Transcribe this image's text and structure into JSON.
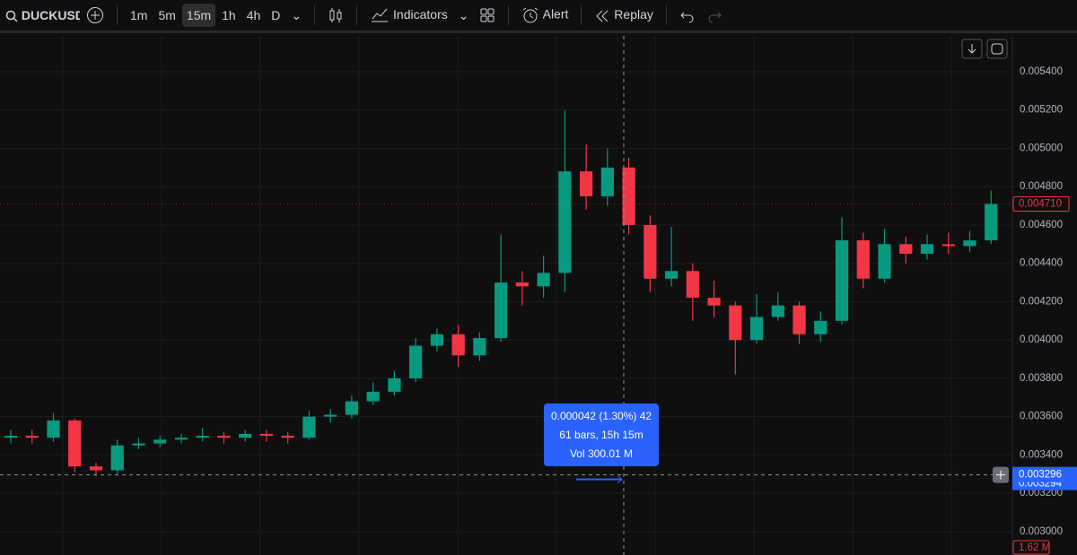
{
  "toolbar": {
    "symbol": "DUCKUSD",
    "timeframes": [
      "1m",
      "5m",
      "15m",
      "1h",
      "4h",
      "D"
    ],
    "active_timeframe": "15m",
    "indicators": "Indicators",
    "alert": "Alert",
    "replay": "Replay"
  },
  "chart_data": {
    "type": "candlestick",
    "up_color": "#089981",
    "down_color": "#f23645",
    "grid": true,
    "ylim": [
      0.002878,
      0.005587
    ],
    "yticks": [
      {
        "value": 0.0054,
        "label": "0.005400"
      },
      {
        "value": 0.0052,
        "label": "0.005200"
      },
      {
        "value": 0.005,
        "label": "0.005000"
      },
      {
        "value": 0.0048,
        "label": "0.004800"
      },
      {
        "value": 0.0046,
        "label": "0.004600"
      },
      {
        "value": 0.0044,
        "label": "0.004400"
      },
      {
        "value": 0.0042,
        "label": "0.004200"
      },
      {
        "value": 0.004,
        "label": "0.004000"
      },
      {
        "value": 0.0038,
        "label": "0.003800"
      },
      {
        "value": 0.0036,
        "label": "0.003600"
      },
      {
        "value": 0.0034,
        "label": "0.003400"
      },
      {
        "value": 0.0032,
        "label": "0.003200"
      },
      {
        "value": 0.003,
        "label": "0.003000"
      }
    ],
    "open": [
      0.00349,
      0.0035,
      0.00349,
      0.00358,
      0.00334,
      0.00332,
      0.00345,
      0.00346,
      0.00348,
      0.00349,
      0.0035,
      0.00349,
      0.00351,
      0.0035,
      0.00349,
      0.0036,
      0.00361,
      0.00368,
      0.00373,
      0.0038,
      0.00397,
      0.00403,
      0.00392,
      0.00401,
      0.0043,
      0.00428,
      0.00435,
      0.00488,
      0.00475,
      0.0049,
      0.0046,
      0.00432,
      0.00436,
      0.00422,
      0.00418,
      0.004,
      0.00412,
      0.00418,
      0.00403,
      0.0041,
      0.00452,
      0.00432,
      0.0045,
      0.00445,
      0.0045,
      0.00449,
      0.00452
    ],
    "high": [
      0.00353,
      0.00353,
      0.00362,
      0.00359,
      0.00336,
      0.00348,
      0.00349,
      0.0035,
      0.00351,
      0.00354,
      0.00352,
      0.00353,
      0.00353,
      0.00352,
      0.00363,
      0.00364,
      0.00371,
      0.00378,
      0.00384,
      0.00401,
      0.00406,
      0.00408,
      0.00404,
      0.00455,
      0.00436,
      0.00444,
      0.0052,
      0.00502,
      0.005,
      0.00495,
      0.00465,
      0.00459,
      0.0044,
      0.00431,
      0.0042,
      0.00424,
      0.00425,
      0.0042,
      0.00415,
      0.00464,
      0.00456,
      0.00458,
      0.00454,
      0.00455,
      0.00456,
      0.00457,
      0.00478
    ],
    "low": [
      0.00346,
      0.00346,
      0.00347,
      0.00331,
      0.00329,
      0.0033,
      0.00343,
      0.00344,
      0.00346,
      0.00347,
      0.00346,
      0.00347,
      0.00347,
      0.00346,
      0.00348,
      0.00357,
      0.00359,
      0.00366,
      0.00371,
      0.00378,
      0.00394,
      0.00386,
      0.00389,
      0.00399,
      0.00418,
      0.00422,
      0.00425,
      0.00468,
      0.0047,
      0.00455,
      0.00425,
      0.00428,
      0.0041,
      0.00412,
      0.00382,
      0.00398,
      0.0041,
      0.00398,
      0.00399,
      0.00408,
      0.00427,
      0.0043,
      0.0044,
      0.00442,
      0.00445,
      0.00446,
      0.0045
    ],
    "close": [
      0.0035,
      0.00349,
      0.00358,
      0.00334,
      0.00332,
      0.00345,
      0.00346,
      0.00348,
      0.00349,
      0.0035,
      0.00349,
      0.00351,
      0.0035,
      0.00349,
      0.0036,
      0.00361,
      0.00368,
      0.00373,
      0.0038,
      0.00397,
      0.00403,
      0.00392,
      0.00401,
      0.0043,
      0.00428,
      0.00435,
      0.00488,
      0.00475,
      0.0049,
      0.0046,
      0.00432,
      0.00436,
      0.00422,
      0.00418,
      0.004,
      0.00412,
      0.00418,
      0.00403,
      0.0041,
      0.00452,
      0.00432,
      0.0045,
      0.00445,
      0.0045,
      0.00449,
      0.00452,
      0.00471
    ],
    "last_price": {
      "value": 0.00471,
      "label": "0.004710"
    },
    "crosshair": {
      "value": 0.003296,
      "label": "0.003296"
    },
    "hidden_price_label": "0.003294",
    "volume_label": "1.62 M",
    "measure": [
      "0.000042 (1.30%) 42",
      "61 bars, 15h 15m",
      "Vol 300.01 M"
    ]
  }
}
